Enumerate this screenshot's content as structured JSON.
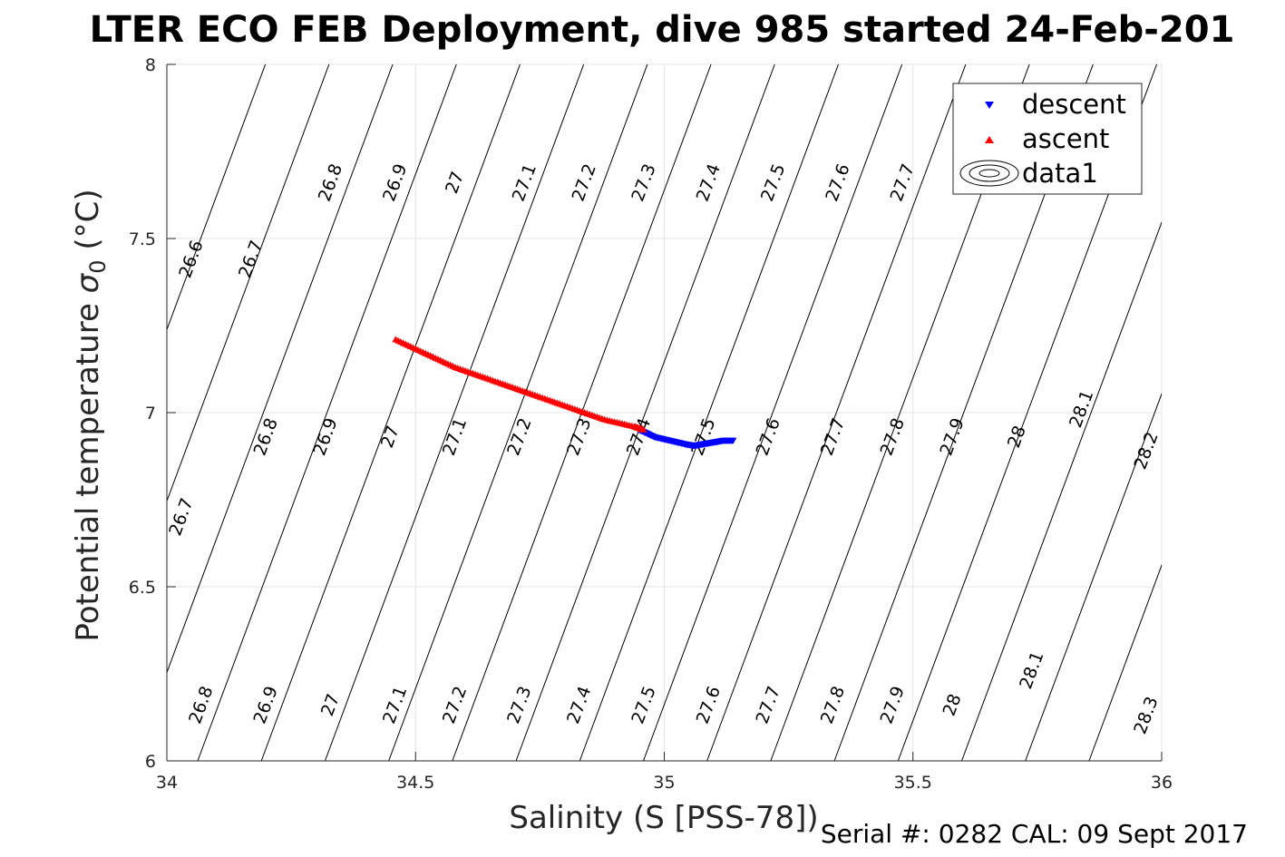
{
  "title": "LTER ECO FEB Deployment, dive 985 started 24-Feb-201",
  "footer": "Serial #: 0282  CAL: 09 Sept 2017",
  "chart_data": {
    "type": "scatter",
    "xlabel": "Salinity (S [PSS-78])",
    "ylabel_main": "Potential temperature ",
    "ylabel_symbol": "σ",
    "ylabel_sub": "0",
    "ylabel_unit": " (°C)",
    "xlim": [
      34,
      36
    ],
    "ylim": [
      6,
      8
    ],
    "xticks": [
      34,
      34.5,
      35,
      35.5,
      36
    ],
    "xtick_labels": [
      "34",
      "34.5",
      "35",
      "35.5",
      "36"
    ],
    "yticks": [
      6,
      6.5,
      7,
      7.5,
      8
    ],
    "ytick_labels": [
      "6",
      "6.5",
      "7",
      "7.5",
      "8"
    ],
    "grid": true,
    "legend_placement": "top-right",
    "legend": [
      {
        "label": "descent",
        "marker": "triangle-down",
        "color": "#0000ff"
      },
      {
        "label": "ascent",
        "marker": "triangle-up",
        "color": "#ff0000"
      },
      {
        "label": "data1",
        "marker": "contour"
      }
    ],
    "series": [
      {
        "name": "descent",
        "color": "#0000ff",
        "x": [
          34.95,
          34.98,
          35.01,
          35.04,
          35.06,
          35.08,
          35.1,
          35.12,
          35.14
        ],
        "y": [
          6.95,
          6.93,
          6.92,
          6.91,
          6.905,
          6.91,
          6.915,
          6.92,
          6.92
        ]
      },
      {
        "name": "ascent",
        "color": "#ff0000",
        "x": [
          34.46,
          34.52,
          34.58,
          34.64,
          34.7,
          34.76,
          34.82,
          34.88,
          34.94,
          34.96
        ],
        "y": [
          7.21,
          7.17,
          7.13,
          7.1,
          7.07,
          7.04,
          7.01,
          6.98,
          6.96,
          6.95
        ]
      }
    ],
    "contours": [
      {
        "level": "26.6",
        "labels": [
          [
            34.05,
            7.44
          ]
        ]
      },
      {
        "level": "26.7",
        "labels": [
          [
            34.17,
            7.44
          ],
          [
            34.03,
            6.7
          ]
        ]
      },
      {
        "level": "26.8",
        "labels": [
          [
            34.33,
            7.66
          ],
          [
            34.2,
            6.93
          ],
          [
            34.07,
            6.16
          ]
        ]
      },
      {
        "level": "26.9",
        "labels": [
          [
            34.46,
            7.66
          ],
          [
            34.32,
            6.93
          ],
          [
            34.2,
            6.16
          ]
        ]
      },
      {
        "level": "27",
        "labels": [
          [
            34.58,
            7.66
          ],
          [
            34.45,
            6.93
          ],
          [
            34.33,
            6.16
          ]
        ]
      },
      {
        "level": "27.1",
        "labels": [
          [
            34.72,
            7.66
          ],
          [
            34.58,
            6.93
          ],
          [
            34.46,
            6.16
          ]
        ]
      },
      {
        "level": "27.2",
        "labels": [
          [
            34.84,
            7.66
          ],
          [
            34.71,
            6.93
          ],
          [
            34.58,
            6.16
          ]
        ]
      },
      {
        "level": "27.3",
        "labels": [
          [
            34.96,
            7.66
          ],
          [
            34.83,
            6.93
          ],
          [
            34.71,
            6.16
          ]
        ]
      },
      {
        "level": "27.4",
        "labels": [
          [
            35.09,
            7.66
          ],
          [
            34.95,
            6.93
          ],
          [
            34.83,
            6.16
          ]
        ]
      },
      {
        "level": "27.5",
        "labels": [
          [
            35.22,
            7.66
          ],
          [
            35.08,
            6.93
          ],
          [
            34.96,
            6.16
          ]
        ]
      },
      {
        "level": "27.6",
        "labels": [
          [
            35.35,
            7.66
          ],
          [
            35.21,
            6.93
          ],
          [
            35.09,
            6.16
          ]
        ]
      },
      {
        "level": "27.7",
        "labels": [
          [
            35.48,
            7.66
          ],
          [
            35.34,
            6.93
          ],
          [
            35.21,
            6.16
          ]
        ]
      },
      {
        "level": "27.8",
        "labels": [
          [
            35.46,
            6.93
          ],
          [
            35.34,
            6.16
          ]
        ]
      },
      {
        "level": "27.9",
        "labels": [
          [
            35.58,
            6.93
          ],
          [
            35.46,
            6.16
          ]
        ]
      },
      {
        "level": "28",
        "labels": [
          [
            35.71,
            6.93
          ],
          [
            35.58,
            6.16
          ]
        ]
      },
      {
        "level": "28.1",
        "labels": [
          [
            35.84,
            7.01
          ],
          [
            35.74,
            6.26
          ]
        ]
      },
      {
        "level": "28.2",
        "labels": [
          [
            35.97,
            6.89
          ]
        ]
      },
      {
        "level": "28.3",
        "labels": [
          [
            35.97,
            6.13
          ]
        ]
      }
    ]
  }
}
